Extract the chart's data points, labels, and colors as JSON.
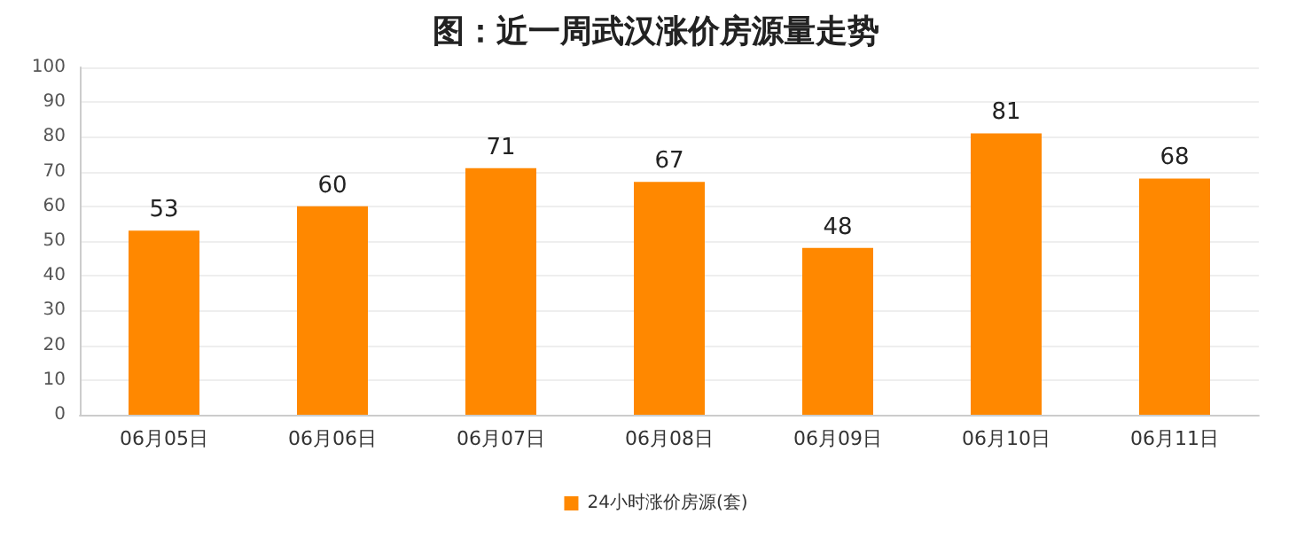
{
  "chart_data": {
    "type": "bar",
    "title": "图：近一周武汉涨价房源量走势",
    "categories": [
      "06月05日",
      "06月06日",
      "06月07日",
      "06月08日",
      "06月09日",
      "06月10日",
      "06月11日"
    ],
    "series": [
      {
        "name": "24小时涨价房源(套)",
        "color": "#ff8800",
        "values": [
          53,
          60,
          71,
          67,
          48,
          81,
          68
        ]
      }
    ],
    "ylim": [
      0,
      100
    ],
    "yticks": [
      0,
      10,
      20,
      30,
      40,
      50,
      60,
      70,
      80,
      90,
      100
    ],
    "grid": "y",
    "legend": "bottom",
    "data_labels": true
  }
}
